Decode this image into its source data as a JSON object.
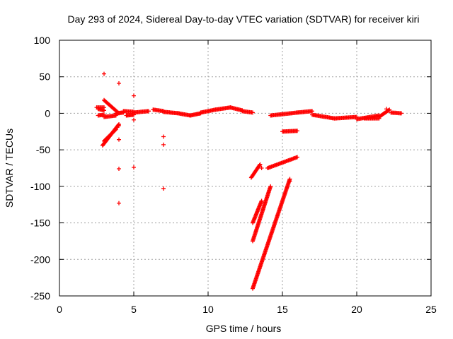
{
  "chart_data": {
    "type": "scatter",
    "title": "Day 293 of 2024, Sidereal Day-to-day VTEC variation (SDTVAR) for receiver kiri",
    "xlabel": "GPS time / hours",
    "ylabel": "SDTVAR / TECUs",
    "xlim": [
      0,
      25
    ],
    "ylim": [
      -250,
      100
    ],
    "x_ticks": [
      0,
      5,
      10,
      15,
      20,
      25
    ],
    "y_ticks": [
      100,
      50,
      0,
      -50,
      -100,
      -150,
      -200,
      -250
    ],
    "grid": true,
    "marker": "+",
    "color": "#ff0000",
    "series": [
      {
        "segments": [
          {
            "from": [
              2.5,
              8
            ],
            "to": [
              3.0,
              8
            ]
          },
          {
            "from": [
              2.6,
              6
            ],
            "to": [
              3.0,
              4
            ]
          },
          {
            "from": [
              2.6,
              -3
            ],
            "to": [
              3.0,
              -2
            ]
          },
          {
            "from": [
              3.0,
              18
            ],
            "to": [
              4.0,
              0
            ]
          },
          {
            "from": [
              3.0,
              -5
            ],
            "to": [
              3.8,
              -3
            ]
          },
          {
            "from": [
              2.9,
              -44
            ],
            "to": [
              4.0,
              -15
            ]
          },
          {
            "from": [
              3.0,
              -38
            ],
            "to": [
              3.8,
              -22
            ]
          },
          {
            "from": [
              3.8,
              0
            ],
            "to": [
              4.3,
              1
            ]
          },
          {
            "from": [
              4.3,
              3
            ],
            "to": [
              5.0,
              2
            ]
          },
          {
            "from": [
              4.5,
              -3
            ],
            "to": [
              5.0,
              -2
            ]
          },
          {
            "from": [
              5.0,
              1
            ],
            "to": [
              6.0,
              3
            ]
          },
          {
            "from": [
              6.3,
              5
            ],
            "to": [
              7.0,
              3
            ]
          },
          {
            "from": [
              7.0,
              2
            ],
            "to": [
              8.0,
              0
            ]
          },
          {
            "from": [
              8.0,
              0
            ],
            "to": [
              8.8,
              -3
            ]
          },
          {
            "from": [
              8.8,
              -3
            ],
            "to": [
              9.5,
              0
            ]
          },
          {
            "from": [
              9.5,
              1
            ],
            "to": [
              10.5,
              5
            ]
          },
          {
            "from": [
              10.5,
              5
            ],
            "to": [
              11.5,
              8
            ]
          },
          {
            "from": [
              11.5,
              8
            ],
            "to": [
              12.3,
              4
            ]
          },
          {
            "from": [
              12.3,
              3
            ],
            "to": [
              13.0,
              1
            ]
          },
          {
            "from": [
              12.9,
              -88
            ],
            "to": [
              13.5,
              -70
            ]
          },
          {
            "from": [
              13.0,
              -150
            ],
            "to": [
              13.6,
              -120
            ]
          },
          {
            "from": [
              13.0,
              -175
            ],
            "to": [
              14.2,
              -100
            ]
          },
          {
            "from": [
              13.0,
              -240
            ],
            "to": [
              15.5,
              -90
            ]
          },
          {
            "from": [
              14.0,
              -75
            ],
            "to": [
              16.0,
              -60
            ]
          },
          {
            "from": [
              14.2,
              -3
            ],
            "to": [
              16.0,
              1
            ]
          },
          {
            "from": [
              15.0,
              -25
            ],
            "to": [
              16.0,
              -24
            ]
          },
          {
            "from": [
              16.0,
              1
            ],
            "to": [
              17.0,
              3
            ]
          },
          {
            "from": [
              17.0,
              -2
            ],
            "to": [
              18.5,
              -7
            ]
          },
          {
            "from": [
              18.5,
              -7
            ],
            "to": [
              20.0,
              -5
            ]
          },
          {
            "from": [
              20.0,
              -8
            ],
            "to": [
              21.5,
              -3
            ]
          },
          {
            "from": [
              21.5,
              -5
            ],
            "to": [
              22.2,
              5
            ]
          },
          {
            "from": [
              22.3,
              1
            ],
            "to": [
              23.0,
              0
            ]
          },
          {
            "from": [
              20.5,
              -7
            ],
            "to": [
              21.5,
              -7
            ]
          }
        ],
        "points": [
          [
            3.0,
            54
          ],
          [
            4.0,
            41
          ],
          [
            4.0,
            -17
          ],
          [
            4.0,
            -36
          ],
          [
            4.0,
            -76
          ],
          [
            4.0,
            -123
          ],
          [
            5.0,
            24
          ],
          [
            5.0,
            -9
          ],
          [
            5.0,
            -74
          ],
          [
            7.0,
            -32
          ],
          [
            7.0,
            -43
          ],
          [
            7.0,
            -103
          ],
          [
            22.0,
            6
          ],
          [
            13.6,
            -75
          ],
          [
            15.5,
            -93
          ]
        ]
      }
    ]
  }
}
